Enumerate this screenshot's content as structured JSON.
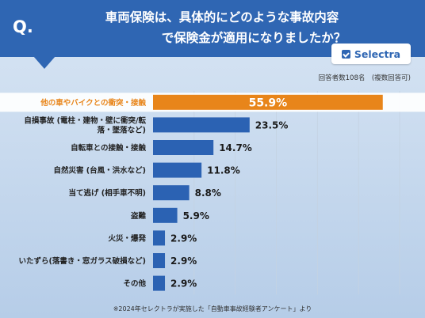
{
  "header": {
    "q_mark": "Q.",
    "title_line1": "車両保険は、具体的にどのような事故内容",
    "title_line2": "で保険金が適用になりましたか？"
  },
  "logo": {
    "text": "Selectra",
    "icon": "check-icon"
  },
  "respondents": "回答者数108名　(複数回答可)",
  "footnote": "※2024年セレクトラが実施した「自動車事故経験者アンケート」より",
  "colors": {
    "header": "#2f66b3",
    "bar": "#2b62b3",
    "highlight": "#e8851a"
  },
  "chart_data": {
    "type": "bar",
    "orientation": "horizontal",
    "unit": "%",
    "xlim": [
      0,
      60
    ],
    "grid": true,
    "categories": [
      "他の車やバイクとの衝突・接触",
      "自損事故 (電柱・建物・壁に衝突/転落・墜落など)",
      "自転車との接触・接触",
      "自然災害 (台風・洪水など)",
      "当て逃げ (相手車不明)",
      "盗難",
      "火災・爆発",
      "いたずら(落書き・窓ガラス破損など)",
      "その他"
    ],
    "label_lines": [
      [
        "他の車やバイクとの衝突・接触"
      ],
      [
        "自損事故 (電柱・建物・壁に衝突/転",
        "落・墜落など)"
      ],
      [
        "自転車との接触・接触"
      ],
      [
        "自然災害 (台風・洪水など)"
      ],
      [
        "当て逃げ (相手車不明)"
      ],
      [
        "盗難"
      ],
      [
        "火災・爆発"
      ],
      [
        "いたずら(落書き・窓ガラス破損など)"
      ],
      [
        "その他"
      ]
    ],
    "values": [
      55.9,
      23.5,
      14.7,
      11.8,
      8.8,
      5.9,
      2.9,
      2.9,
      2.9
    ],
    "value_labels": [
      "55.9%",
      "23.5%",
      "14.7%",
      "11.8%",
      "8.8%",
      "5.9%",
      "2.9%",
      "2.9%",
      "2.9%"
    ],
    "highlight_index": 0
  }
}
